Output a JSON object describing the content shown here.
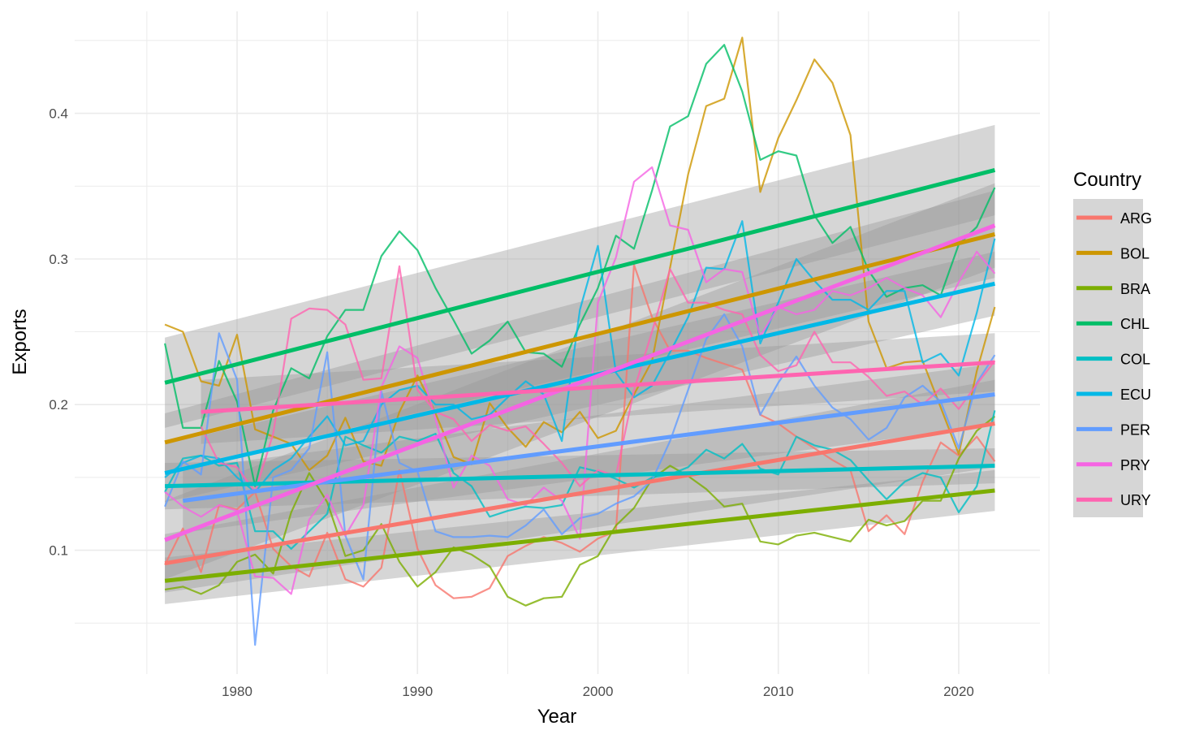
{
  "chart_data": {
    "type": "line",
    "xlabel": "Year",
    "ylabel": "Exports",
    "xlim": [
      1971,
      2024.5
    ],
    "ylim": [
      0.015,
      0.47
    ],
    "x_ticks": [
      1980,
      1990,
      2000,
      2010,
      2020
    ],
    "x_tick_labels": [
      "1980",
      "1990",
      "2000",
      "2010",
      "2020"
    ],
    "y_ticks": [
      0.1,
      0.2,
      0.3,
      0.4
    ],
    "y_tick_labels": [
      "0.1",
      "0.2",
      "0.3",
      "0.4"
    ],
    "grid": true,
    "legend": {
      "title": "Country",
      "position": "right"
    },
    "band_color": "#999999",
    "band_opacity": 0.4,
    "years": [
      1976,
      1977,
      1978,
      1979,
      1980,
      1981,
      1982,
      1983,
      1984,
      1985,
      1986,
      1987,
      1988,
      1989,
      1990,
      1991,
      1992,
      1993,
      1994,
      1995,
      1996,
      1997,
      1998,
      1999,
      2000,
      2001,
      2002,
      2003,
      2004,
      2005,
      2006,
      2007,
      2008,
      2009,
      2010,
      2011,
      2012,
      2013,
      2014,
      2015,
      2016,
      2017,
      2018,
      2019,
      2020,
      2021,
      2022
    ],
    "series": [
      {
        "name": "ARG",
        "color": "#F8766D",
        "line_alpha": 0.8,
        "values": [
          0.09,
          0.115,
          0.085,
          0.131,
          0.128,
          0.14,
          0.101,
          0.089,
          0.082,
          0.112,
          0.08,
          0.075,
          0.088,
          0.155,
          0.101,
          0.076,
          0.067,
          0.068,
          0.074,
          0.096,
          0.103,
          0.109,
          0.105,
          0.099,
          0.108,
          0.113,
          0.296,
          0.26,
          0.237,
          0.237,
          0.232,
          0.228,
          0.224,
          0.193,
          0.187,
          0.178,
          0.17,
          0.162,
          0.155,
          0.113,
          0.124,
          0.111,
          0.147,
          0.174,
          0.165,
          0.178,
          0.161
        ],
        "fit": {
          "x": [
            1976,
            2022
          ],
          "y": [
            0.091,
            0.187
          ],
          "band": [
            0.02,
            0.03
          ]
        }
      },
      {
        "name": "BOL",
        "color": "#CD9600",
        "line_alpha": 0.8,
        "values": [
          0.255,
          0.25,
          0.216,
          0.213,
          0.248,
          0.183,
          0.178,
          0.173,
          0.155,
          0.165,
          0.191,
          0.161,
          0.158,
          0.195,
          0.22,
          0.194,
          0.164,
          0.159,
          0.201,
          0.184,
          0.171,
          0.188,
          0.181,
          0.195,
          0.177,
          0.182,
          0.207,
          0.23,
          0.294,
          0.358,
          0.405,
          0.41,
          0.452,
          0.346,
          0.383,
          0.409,
          0.437,
          0.421,
          0.385,
          0.257,
          0.225,
          0.229,
          0.23,
          0.198,
          0.166,
          0.223,
          0.267
        ],
        "fit": {
          "x": [
            1976,
            2022
          ],
          "y": [
            0.174,
            0.317
          ],
          "band": [
            0.02,
            0.03
          ]
        }
      },
      {
        "name": "BRA",
        "color": "#7CAE00",
        "line_alpha": 0.8,
        "values": [
          0.073,
          0.075,
          0.07,
          0.076,
          0.092,
          0.097,
          0.084,
          0.126,
          0.153,
          0.133,
          0.096,
          0.1,
          0.118,
          0.092,
          0.075,
          0.085,
          0.102,
          0.097,
          0.089,
          0.068,
          0.062,
          0.067,
          0.068,
          0.09,
          0.096,
          0.117,
          0.129,
          0.149,
          0.158,
          0.151,
          0.142,
          0.13,
          0.132,
          0.106,
          0.104,
          0.11,
          0.112,
          0.109,
          0.106,
          0.121,
          0.117,
          0.12,
          0.134,
          0.134,
          0.163,
          0.182,
          0.192
        ],
        "fit": {
          "x": [
            1976,
            2022
          ],
          "y": [
            0.079,
            0.141
          ],
          "band": [
            0.016,
            0.014
          ]
        }
      },
      {
        "name": "CHL",
        "color": "#00BE67",
        "line_alpha": 0.8,
        "values": [
          0.242,
          0.184,
          0.184,
          0.23,
          0.202,
          0.144,
          0.196,
          0.225,
          0.218,
          0.247,
          0.265,
          0.265,
          0.302,
          0.319,
          0.306,
          0.28,
          0.258,
          0.235,
          0.244,
          0.257,
          0.236,
          0.235,
          0.226,
          0.255,
          0.28,
          0.316,
          0.307,
          0.347,
          0.391,
          0.398,
          0.434,
          0.447,
          0.415,
          0.368,
          0.374,
          0.371,
          0.33,
          0.311,
          0.322,
          0.292,
          0.274,
          0.28,
          0.282,
          0.275,
          0.31,
          0.322,
          0.349
        ],
        "fit": {
          "x": [
            1976,
            2022
          ],
          "y": [
            0.215,
            0.361
          ],
          "band": [
            0.031,
            0.031
          ]
        }
      },
      {
        "name": "COL",
        "color": "#00BFC4",
        "line_alpha": 0.8,
        "values": [
          0.14,
          0.163,
          0.165,
          0.158,
          0.16,
          0.113,
          0.113,
          0.101,
          0.113,
          0.125,
          0.178,
          0.172,
          0.167,
          0.178,
          0.175,
          0.18,
          0.153,
          0.144,
          0.123,
          0.127,
          0.13,
          0.129,
          0.131,
          0.157,
          0.154,
          0.149,
          0.143,
          0.15,
          0.152,
          0.157,
          0.169,
          0.163,
          0.173,
          0.156,
          0.152,
          0.178,
          0.172,
          0.169,
          0.162,
          0.148,
          0.135,
          0.147,
          0.153,
          0.15,
          0.126,
          0.144,
          0.196
        ],
        "fit": {
          "x": [
            1976,
            2022
          ],
          "y": [
            0.144,
            0.158
          ],
          "band": [
            0.016,
            0.012
          ]
        }
      },
      {
        "name": "ECU",
        "color": "#00B8E7",
        "line_alpha": 0.8,
        "values": [
          0.15,
          0.16,
          0.165,
          0.163,
          0.15,
          0.14,
          0.155,
          0.163,
          0.178,
          0.192,
          0.172,
          0.175,
          0.2,
          0.21,
          0.213,
          0.2,
          0.2,
          0.19,
          0.193,
          0.205,
          0.216,
          0.207,
          0.175,
          0.265,
          0.309,
          0.222,
          0.205,
          0.213,
          0.236,
          0.26,
          0.294,
          0.293,
          0.326,
          0.242,
          0.27,
          0.3,
          0.285,
          0.272,
          0.272,
          0.265,
          0.278,
          0.278,
          0.229,
          0.235,
          0.22,
          0.263,
          0.314
        ],
        "fit": {
          "x": [
            1976,
            2022
          ],
          "y": [
            0.153,
            0.283
          ],
          "band": [
            0.02,
            0.022
          ]
        }
      },
      {
        "name": "PER",
        "color": "#619CFF",
        "line_alpha": 0.8,
        "values": [
          0.13,
          0.161,
          0.152,
          0.249,
          0.217,
          0.035,
          0.15,
          0.155,
          0.17,
          0.236,
          0.11,
          0.08,
          0.209,
          0.16,
          0.154,
          0.113,
          0.109,
          0.109,
          0.11,
          0.109,
          0.117,
          0.128,
          0.111,
          0.122,
          0.125,
          0.132,
          0.137,
          0.148,
          0.175,
          0.21,
          0.245,
          0.262,
          0.24,
          0.193,
          0.215,
          0.233,
          0.213,
          0.198,
          0.19,
          0.176,
          0.184,
          0.205,
          0.213,
          0.202,
          0.17,
          0.215,
          0.234
        ],
        "fit": {
          "x": [
            1977,
            2022
          ],
          "y": [
            0.134,
            0.207
          ],
          "band": [
            0.022,
            0.021
          ]
        }
      },
      {
        "name": "PRY",
        "color": "#F564E3",
        "line_alpha": 0.8,
        "values": [
          0.14,
          0.13,
          0.123,
          0.131,
          0.127,
          0.082,
          0.081,
          0.07,
          0.121,
          0.138,
          0.11,
          0.131,
          0.212,
          0.24,
          0.232,
          0.19,
          0.143,
          0.165,
          0.158,
          0.135,
          0.131,
          0.143,
          0.134,
          0.108,
          0.27,
          0.301,
          0.353,
          0.363,
          0.323,
          0.32,
          0.284,
          0.293,
          0.291,
          0.247,
          0.267,
          0.262,
          0.265,
          0.278,
          0.275,
          0.28,
          0.287,
          0.28,
          0.275,
          0.26,
          0.284,
          0.305,
          0.29
        ],
        "fit": {
          "x": [
            1976,
            2022
          ],
          "y": [
            0.107,
            0.323
          ],
          "band": [
            0.027,
            0.029
          ]
        }
      },
      {
        "name": "URY",
        "color": "#FF64B0",
        "line_alpha": 0.8,
        "values": [
          null,
          null,
          0.185,
          0.16,
          0.157,
          0.14,
          0.18,
          0.259,
          0.266,
          0.265,
          0.255,
          0.217,
          0.218,
          0.295,
          0.21,
          0.195,
          0.19,
          0.175,
          0.186,
          0.182,
          0.185,
          0.173,
          0.16,
          0.144,
          0.155,
          0.151,
          0.21,
          0.25,
          0.293,
          0.27,
          0.27,
          0.265,
          0.262,
          0.234,
          0.223,
          0.227,
          0.25,
          0.229,
          0.229,
          0.219,
          0.206,
          0.209,
          0.2,
          0.211,
          0.197,
          0.214,
          0.23
        ],
        "fit": {
          "x": [
            1978,
            2022
          ],
          "y": [
            0.195,
            0.229
          ],
          "band": [
            0.022,
            0.02
          ]
        }
      }
    ]
  }
}
